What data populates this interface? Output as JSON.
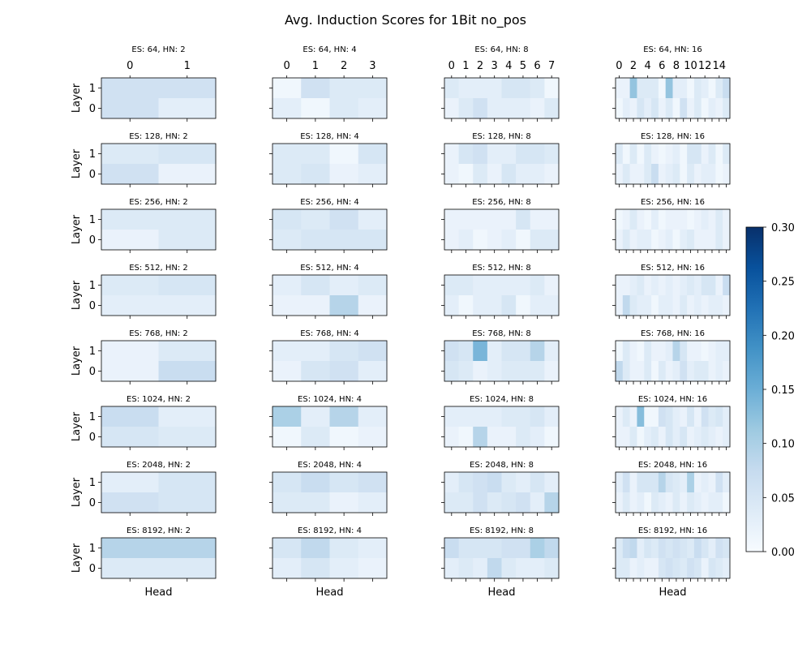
{
  "chart_data": {
    "type": "heatmap",
    "title": "Avg. Induction Scores for 1Bit no_pos",
    "xlabel": "Head",
    "ylabel": "Layer",
    "layers": [
      0,
      1
    ],
    "colorbar": {
      "range": [
        0,
        0.3
      ],
      "ticks": [
        "0.00",
        "0.05",
        "0.10",
        "0.15",
        "0.20",
        "0.25",
        "0.30"
      ],
      "colormap": "Blues"
    },
    "colormap_colors": [
      "#f7fbff",
      "#deebf7",
      "#c6dbef",
      "#9ecae1",
      "#6baed6",
      "#4292c6",
      "#2171b5",
      "#08519c",
      "#08306b"
    ],
    "panels": [
      {
        "title": "ES: 64, HN: 2",
        "heads": 2,
        "layer1": [
          0.06,
          0.06
        ],
        "layer0": [
          0.06,
          0.03
        ]
      },
      {
        "title": "ES: 64, HN: 4",
        "heads": 4,
        "layer1": [
          0.01,
          0.06,
          0.04,
          0.04
        ],
        "layer0": [
          0.03,
          0.01,
          0.04,
          0.03
        ]
      },
      {
        "title": "ES: 64, HN: 8",
        "heads": 8,
        "layer1": [
          0.04,
          0.03,
          0.03,
          0.03,
          0.05,
          0.05,
          0.04,
          0.01
        ],
        "layer0": [
          0.02,
          0.04,
          0.06,
          0.03,
          0.03,
          0.03,
          0.02,
          0.04
        ]
      },
      {
        "title": "ES: 64, HN: 16",
        "heads": 16,
        "layer1": [
          0.02,
          0.02,
          0.12,
          0.04,
          0.04,
          0.04,
          0.01,
          0.12,
          0.03,
          0.03,
          0.01,
          0.04,
          0.03,
          0.01,
          0.04,
          0.07
        ],
        "layer0": [
          0.01,
          0.03,
          0.02,
          0.05,
          0.03,
          0.05,
          0.02,
          0.04,
          0.01,
          0.06,
          0.02,
          0.04,
          0.01,
          0.03,
          0.02,
          0.04
        ]
      },
      {
        "title": "ES: 128, HN: 2",
        "heads": 2,
        "layer1": [
          0.04,
          0.05
        ],
        "layer0": [
          0.06,
          0.02
        ]
      },
      {
        "title": "ES: 128, HN: 4",
        "heads": 4,
        "layer1": [
          0.04,
          0.04,
          0.01,
          0.05
        ],
        "layer0": [
          0.04,
          0.05,
          0.02,
          0.03
        ]
      },
      {
        "title": "ES: 128, HN: 8",
        "heads": 8,
        "layer1": [
          0.02,
          0.05,
          0.06,
          0.03,
          0.03,
          0.05,
          0.05,
          0.04
        ],
        "layer0": [
          0.02,
          0.01,
          0.04,
          0.02,
          0.05,
          0.03,
          0.03,
          0.02
        ]
      },
      {
        "title": "ES: 128, HN: 16",
        "heads": 16,
        "layer1": [
          0.04,
          0.01,
          0.04,
          0.01,
          0.04,
          0.02,
          0.01,
          0.02,
          0.03,
          0.01,
          0.05,
          0.05,
          0.02,
          0.04,
          0.01,
          0.04
        ],
        "layer0": [
          0.02,
          0.04,
          0.02,
          0.02,
          0.04,
          0.07,
          0.02,
          0.03,
          0.04,
          0.01,
          0.04,
          0.02,
          0.03,
          0.03,
          0.01,
          0.02
        ]
      },
      {
        "title": "ES: 256, HN: 2",
        "heads": 2,
        "layer1": [
          0.04,
          0.04
        ],
        "layer0": [
          0.02,
          0.04
        ]
      },
      {
        "title": "ES: 256, HN: 4",
        "heads": 4,
        "layer1": [
          0.05,
          0.04,
          0.06,
          0.03
        ],
        "layer0": [
          0.04,
          0.05,
          0.05,
          0.05
        ]
      },
      {
        "title": "ES: 256, HN: 8",
        "heads": 8,
        "layer1": [
          0.02,
          0.02,
          0.02,
          0.02,
          0.02,
          0.05,
          0.02,
          0.02
        ],
        "layer0": [
          0.02,
          0.03,
          0.01,
          0.02,
          0.03,
          0.01,
          0.04,
          0.04
        ]
      },
      {
        "title": "ES: 256, HN: 16",
        "heads": 16,
        "layer1": [
          0.01,
          0.02,
          0.04,
          0.02,
          0.01,
          0.03,
          0.01,
          0.02,
          0.02,
          0.02,
          0.01,
          0.02,
          0.03,
          0.02,
          0.04,
          0.02
        ],
        "layer0": [
          0.02,
          0.04,
          0.02,
          0.03,
          0.03,
          0.01,
          0.02,
          0.03,
          0.01,
          0.03,
          0.04,
          0.02,
          0.02,
          0.02,
          0.04,
          0.02
        ]
      },
      {
        "title": "ES: 512, HN: 2",
        "heads": 2,
        "layer1": [
          0.04,
          0.05
        ],
        "layer0": [
          0.03,
          0.03
        ]
      },
      {
        "title": "ES: 512, HN: 4",
        "heads": 4,
        "layer1": [
          0.03,
          0.05,
          0.03,
          0.04
        ],
        "layer0": [
          0.02,
          0.02,
          0.09,
          0.02
        ]
      },
      {
        "title": "ES: 512, HN: 8",
        "heads": 8,
        "layer1": [
          0.04,
          0.04,
          0.03,
          0.03,
          0.03,
          0.03,
          0.04,
          0.02
        ],
        "layer0": [
          0.03,
          0.01,
          0.03,
          0.03,
          0.05,
          0.01,
          0.03,
          0.03
        ]
      },
      {
        "title": "ES: 512, HN: 16",
        "heads": 16,
        "layer1": [
          0.02,
          0.02,
          0.03,
          0.04,
          0.02,
          0.03,
          0.02,
          0.03,
          0.02,
          0.03,
          0.04,
          0.03,
          0.05,
          0.05,
          0.02,
          0.07
        ],
        "layer0": [
          0.02,
          0.08,
          0.04,
          0.03,
          0.03,
          0.01,
          0.03,
          0.03,
          0.02,
          0.04,
          0.02,
          0.03,
          0.02,
          0.03,
          0.03,
          0.02
        ]
      },
      {
        "title": "ES: 768, HN: 2",
        "heads": 2,
        "layer1": [
          0.02,
          0.04
        ],
        "layer0": [
          0.02,
          0.07
        ]
      },
      {
        "title": "ES: 768, HN: 4",
        "heads": 4,
        "layer1": [
          0.03,
          0.03,
          0.05,
          0.06
        ],
        "layer0": [
          0.02,
          0.05,
          0.06,
          0.03
        ]
      },
      {
        "title": "ES: 768, HN: 8",
        "heads": 8,
        "layer1": [
          0.06,
          0.05,
          0.14,
          0.03,
          0.05,
          0.05,
          0.09,
          0.03
        ],
        "layer0": [
          0.05,
          0.04,
          0.02,
          0.03,
          0.04,
          0.04,
          0.04,
          0.02
        ]
      },
      {
        "title": "ES: 768, HN: 16",
        "heads": 16,
        "layer1": [
          0.01,
          0.04,
          0.02,
          0.01,
          0.04,
          0.02,
          0.02,
          0.03,
          0.09,
          0.05,
          0.02,
          0.02,
          0.01,
          0.02,
          0.03,
          0.03
        ],
        "layer0": [
          0.08,
          0.04,
          0.02,
          0.02,
          0.04,
          0.01,
          0.04,
          0.02,
          0.03,
          0.06,
          0.03,
          0.04,
          0.04,
          0.02,
          0.03,
          0.02
        ]
      },
      {
        "title": "ES: 1024, HN: 2",
        "heads": 2,
        "layer1": [
          0.07,
          0.03
        ],
        "layer0": [
          0.05,
          0.04
        ]
      },
      {
        "title": "ES: 1024, HN: 4",
        "heads": 4,
        "layer1": [
          0.1,
          0.03,
          0.09,
          0.03
        ],
        "layer0": [
          0.01,
          0.04,
          0.01,
          0.02
        ]
      },
      {
        "title": "ES: 1024, HN: 8",
        "heads": 8,
        "layer1": [
          0.03,
          0.03,
          0.03,
          0.03,
          0.04,
          0.04,
          0.05,
          0.03
        ],
        "layer0": [
          0.02,
          0.01,
          0.09,
          0.02,
          0.02,
          0.04,
          0.03,
          0.01
        ]
      },
      {
        "title": "ES: 1024, HN: 16",
        "heads": 16,
        "layer1": [
          0.02,
          0.04,
          0.02,
          0.13,
          0.01,
          0.01,
          0.06,
          0.05,
          0.03,
          0.02,
          0.05,
          0.02,
          0.06,
          0.04,
          0.05,
          0.03
        ],
        "layer0": [
          0.02,
          0.02,
          0.04,
          0.01,
          0.03,
          0.04,
          0.02,
          0.05,
          0.03,
          0.05,
          0.02,
          0.03,
          0.04,
          0.03,
          0.02,
          0.03
        ]
      },
      {
        "title": "ES: 2048, HN: 2",
        "heads": 2,
        "layer1": [
          0.03,
          0.05
        ],
        "layer0": [
          0.06,
          0.05
        ]
      },
      {
        "title": "ES: 2048, HN: 4",
        "heads": 4,
        "layer1": [
          0.05,
          0.07,
          0.05,
          0.06
        ],
        "layer0": [
          0.04,
          0.04,
          0.02,
          0.03
        ]
      },
      {
        "title": "ES: 2048, HN: 8",
        "heads": 8,
        "layer1": [
          0.03,
          0.05,
          0.06,
          0.07,
          0.04,
          0.03,
          0.05,
          0.03
        ],
        "layer0": [
          0.04,
          0.04,
          0.06,
          0.04,
          0.05,
          0.06,
          0.03,
          0.09
        ]
      },
      {
        "title": "ES: 2048, HN: 16",
        "heads": 16,
        "layer1": [
          0.03,
          0.06,
          0.02,
          0.05,
          0.05,
          0.05,
          0.09,
          0.05,
          0.04,
          0.03,
          0.1,
          0.02,
          0.03,
          0.02,
          0.06,
          0.03
        ],
        "layer0": [
          0.02,
          0.04,
          0.02,
          0.03,
          0.01,
          0.04,
          0.03,
          0.02,
          0.04,
          0.02,
          0.04,
          0.03,
          0.02,
          0.03,
          0.03,
          0.01
        ]
      },
      {
        "title": "ES: 8192, HN: 2",
        "heads": 2,
        "layer1": [
          0.09,
          0.09
        ],
        "layer0": [
          0.04,
          0.04
        ]
      },
      {
        "title": "ES: 8192, HN: 4",
        "heads": 4,
        "layer1": [
          0.05,
          0.08,
          0.04,
          0.03
        ],
        "layer0": [
          0.03,
          0.05,
          0.03,
          0.02
        ]
      },
      {
        "title": "ES: 8192, HN: 8",
        "heads": 8,
        "layer1": [
          0.07,
          0.05,
          0.05,
          0.05,
          0.06,
          0.06,
          0.1,
          0.08
        ],
        "layer0": [
          0.03,
          0.04,
          0.03,
          0.08,
          0.04,
          0.03,
          0.03,
          0.04
        ]
      },
      {
        "title": "ES: 8192, HN: 16",
        "heads": 16,
        "layer1": [
          0.04,
          0.07,
          0.08,
          0.03,
          0.05,
          0.04,
          0.06,
          0.05,
          0.06,
          0.05,
          0.04,
          0.07,
          0.05,
          0.03,
          0.06,
          0.05
        ],
        "layer0": [
          0.04,
          0.04,
          0.02,
          0.03,
          0.02,
          0.02,
          0.05,
          0.06,
          0.05,
          0.04,
          0.06,
          0.05,
          0.02,
          0.05,
          0.04,
          0.03
        ]
      }
    ],
    "top_tick_labels": {
      "2": [
        "0",
        "1"
      ],
      "4": [
        "0",
        "1",
        "2",
        "3"
      ],
      "8": [
        "0",
        "1",
        "2",
        "3",
        "4",
        "5",
        "6",
        "7"
      ],
      "16": [
        "0",
        "2",
        "4",
        "6",
        "8",
        "10",
        "12",
        "14"
      ]
    }
  }
}
